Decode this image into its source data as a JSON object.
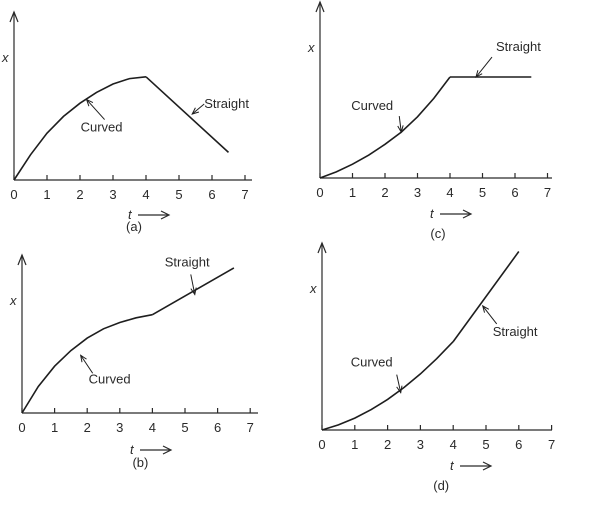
{
  "chart_data": [
    {
      "id": "a",
      "type": "line",
      "caption": "(a)",
      "xlabel": "t",
      "ylabel": "x",
      "x_ticks": [
        "0",
        "1",
        "2",
        "3",
        "4",
        "5",
        "6",
        "7"
      ],
      "xlim": [
        0,
        7
      ],
      "ylim": [
        0,
        10
      ],
      "series": [
        {
          "segment": "curved",
          "x": [
            0,
            0.5,
            1,
            1.5,
            2,
            2.5,
            3,
            3.5,
            4
          ],
          "y": [
            0,
            2.1,
            3.9,
            5.3,
            6.4,
            7.3,
            8.0,
            8.45,
            8.6
          ]
        },
        {
          "segment": "straight",
          "x": [
            4,
            6.5
          ],
          "y": [
            8.6,
            2.3
          ]
        }
      ],
      "annotations": [
        {
          "text": "Curved",
          "x": 2.2,
          "y": 6.7
        },
        {
          "text": "Straight",
          "x": 5.4,
          "y": 5.5
        }
      ]
    },
    {
      "id": "c",
      "type": "line",
      "caption": "(c)",
      "xlabel": "t",
      "ylabel": "x",
      "x_ticks": [
        "0",
        "1",
        "2",
        "3",
        "4",
        "5",
        "6",
        "7"
      ],
      "xlim": [
        0,
        7
      ],
      "ylim": [
        0,
        10
      ],
      "series": [
        {
          "segment": "curved",
          "x": [
            0,
            0.5,
            1,
            1.5,
            2,
            2.5,
            3,
            3.5,
            4
          ],
          "y": [
            0,
            0.4,
            0.9,
            1.5,
            2.2,
            3.0,
            4.0,
            5.2,
            6.6
          ]
        },
        {
          "segment": "straight",
          "x": [
            4,
            6.5
          ],
          "y": [
            6.6,
            6.6
          ]
        }
      ],
      "annotations": [
        {
          "text": "Curved",
          "x": 2.5,
          "y": 3.0
        },
        {
          "text": "Straight",
          "x": 4.8,
          "y": 6.6
        }
      ]
    },
    {
      "id": "b",
      "type": "line",
      "caption": "(b)",
      "xlabel": "t",
      "ylabel": "x",
      "x_ticks": [
        "0",
        "1",
        "2",
        "3",
        "4",
        "5",
        "6",
        "7"
      ],
      "xlim": [
        0,
        7
      ],
      "ylim": [
        0,
        10
      ],
      "series": [
        {
          "segment": "curved",
          "x": [
            0,
            0.5,
            1,
            1.5,
            2,
            2.5,
            3,
            3.5,
            4
          ],
          "y": [
            0,
            1.7,
            3.0,
            4.0,
            4.8,
            5.4,
            5.8,
            6.1,
            6.3
          ]
        },
        {
          "segment": "straight",
          "x": [
            4,
            6.5
          ],
          "y": [
            6.3,
            9.3
          ]
        }
      ],
      "annotations": [
        {
          "text": "Curved",
          "x": 1.8,
          "y": 3.7
        },
        {
          "text": "Straight",
          "x": 5.3,
          "y": 7.6
        }
      ]
    },
    {
      "id": "d",
      "type": "line",
      "caption": "(d)",
      "xlabel": "t",
      "ylabel": "x",
      "x_ticks": [
        "0",
        "1",
        "2",
        "3",
        "4",
        "5",
        "6",
        "7"
      ],
      "xlim": [
        0,
        7
      ],
      "ylim": [
        0,
        10
      ],
      "series": [
        {
          "segment": "curved",
          "x": [
            0,
            0.5,
            1,
            1.5,
            2,
            2.5,
            3,
            3.5,
            4
          ],
          "y": [
            0,
            0.3,
            0.7,
            1.2,
            1.8,
            2.5,
            3.3,
            4.2,
            5.2
          ]
        },
        {
          "segment": "straight",
          "x": [
            4,
            6
          ],
          "y": [
            5.2,
            10.5
          ]
        }
      ],
      "annotations": [
        {
          "text": "Curved",
          "x": 2.4,
          "y": 2.2
        },
        {
          "text": "Straight",
          "x": 4.9,
          "y": 7.3
        }
      ]
    }
  ]
}
